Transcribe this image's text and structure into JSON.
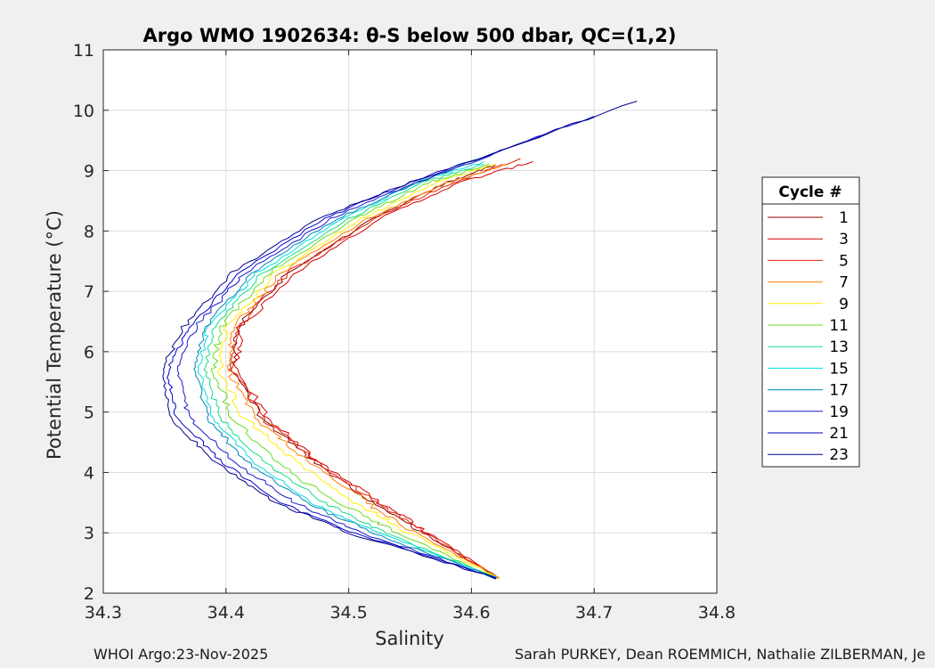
{
  "chart_data": {
    "type": "line",
    "title": "Argo WMO 1902634: θ-S below 500 dbar,  QC=(1,2)",
    "xlabel": "Salinity",
    "ylabel": "Potential Temperature (°C)",
    "xlim": [
      34.3,
      34.8
    ],
    "ylim": [
      2,
      11
    ],
    "xticks": [
      "34.3",
      "34.4",
      "34.5",
      "34.6",
      "34.7",
      "34.8"
    ],
    "yticks": [
      "2",
      "3",
      "4",
      "5",
      "6",
      "7",
      "8",
      "9",
      "10",
      "11"
    ],
    "grid": true,
    "legend_title": "Cycle #",
    "legend_position": "right",
    "series": [
      {
        "name": "1",
        "color": "#8b0000",
        "x": [
          34.622,
          34.56,
          34.52,
          34.47,
          34.43,
          34.405,
          34.41,
          34.45,
          34.52,
          34.58,
          34.62
        ],
        "y": [
          2.25,
          3.0,
          3.5,
          4.2,
          4.9,
          5.7,
          6.4,
          7.3,
          8.2,
          8.8,
          9.1
        ]
      },
      {
        "name": "3",
        "color": "#d40000",
        "x": [
          34.622,
          34.565,
          34.525,
          34.475,
          34.435,
          34.408,
          34.412,
          34.455,
          34.525,
          34.59,
          34.65
        ],
        "y": [
          2.25,
          3.0,
          3.5,
          4.2,
          4.9,
          5.7,
          6.4,
          7.3,
          8.2,
          8.8,
          9.15
        ]
      },
      {
        "name": "5",
        "color": "#e62000",
        "x": [
          34.622,
          34.562,
          34.522,
          34.472,
          34.43,
          34.405,
          34.41,
          34.45,
          34.52,
          34.585,
          34.64
        ],
        "y": [
          2.25,
          3.0,
          3.5,
          4.2,
          4.9,
          5.7,
          6.4,
          7.3,
          8.2,
          8.8,
          9.2
        ]
      },
      {
        "name": "7",
        "color": "#ff7f00",
        "x": [
          34.622,
          34.555,
          34.515,
          34.465,
          34.425,
          34.402,
          34.405,
          34.445,
          34.515,
          34.58,
          34.63
        ],
        "y": [
          2.25,
          3.0,
          3.5,
          4.2,
          4.9,
          5.7,
          6.4,
          7.3,
          8.2,
          8.8,
          9.1
        ]
      },
      {
        "name": "9",
        "color": "#ffee00",
        "x": [
          34.622,
          34.55,
          34.505,
          34.455,
          34.415,
          34.395,
          34.4,
          34.44,
          34.51,
          34.57,
          34.62
        ],
        "y": [
          2.25,
          3.0,
          3.5,
          4.2,
          4.9,
          5.7,
          6.4,
          7.3,
          8.2,
          8.8,
          9.1
        ]
      },
      {
        "name": "11",
        "color": "#66dd22",
        "x": [
          34.62,
          34.54,
          34.49,
          34.44,
          34.405,
          34.39,
          34.395,
          34.435,
          34.505,
          34.565,
          34.615
        ],
        "y": [
          2.25,
          3.0,
          3.5,
          4.2,
          4.9,
          5.7,
          6.4,
          7.3,
          8.2,
          8.8,
          9.1
        ]
      },
      {
        "name": "13",
        "color": "#11dd88",
        "x": [
          34.62,
          34.53,
          34.48,
          34.43,
          34.395,
          34.383,
          34.39,
          34.43,
          34.5,
          34.56,
          34.61
        ],
        "y": [
          2.25,
          3.0,
          3.5,
          4.2,
          4.9,
          5.7,
          6.4,
          7.3,
          8.2,
          8.8,
          9.1
        ]
      },
      {
        "name": "15",
        "color": "#00dddd",
        "x": [
          34.62,
          34.525,
          34.47,
          34.42,
          34.39,
          34.378,
          34.385,
          34.425,
          34.495,
          34.555,
          34.61
        ],
        "y": [
          2.25,
          3.0,
          3.5,
          4.2,
          4.9,
          5.7,
          6.4,
          7.3,
          8.2,
          8.8,
          9.15
        ]
      },
      {
        "name": "17",
        "color": "#0088bb",
        "x": [
          34.62,
          34.52,
          34.465,
          34.415,
          34.385,
          34.375,
          34.383,
          34.42,
          34.49,
          34.555,
          34.62
        ],
        "y": [
          2.25,
          3.0,
          3.5,
          4.2,
          4.9,
          5.7,
          6.4,
          7.3,
          8.2,
          8.8,
          9.3
        ]
      },
      {
        "name": "19",
        "color": "#1a1acc",
        "x": [
          34.62,
          34.51,
          34.455,
          34.405,
          34.37,
          34.36,
          34.375,
          34.415,
          34.485,
          34.555,
          34.66
        ],
        "y": [
          2.25,
          3.0,
          3.5,
          4.2,
          4.9,
          5.7,
          6.4,
          7.3,
          8.2,
          8.8,
          9.6
        ]
      },
      {
        "name": "21",
        "color": "#0000cc",
        "x": [
          34.62,
          34.505,
          34.445,
          34.395,
          34.36,
          34.352,
          34.37,
          34.41,
          34.48,
          34.55,
          34.7
        ],
        "y": [
          2.25,
          3.0,
          3.5,
          4.2,
          4.9,
          5.7,
          6.4,
          7.3,
          8.2,
          8.8,
          9.9
        ]
      },
      {
        "name": "23",
        "color": "#00008b",
        "x": [
          34.62,
          34.5,
          34.44,
          34.39,
          34.355,
          34.348,
          34.365,
          34.405,
          34.475,
          34.55,
          34.735
        ],
        "y": [
          2.25,
          3.0,
          3.5,
          4.2,
          4.9,
          5.7,
          6.4,
          7.3,
          8.2,
          8.8,
          10.15
        ]
      }
    ]
  },
  "footer": {
    "left": "WHOI Argo:23-Nov-2025",
    "right": "Sarah PURKEY, Dean ROEMMICH, Nathalie ZILBERMAN, Je"
  }
}
